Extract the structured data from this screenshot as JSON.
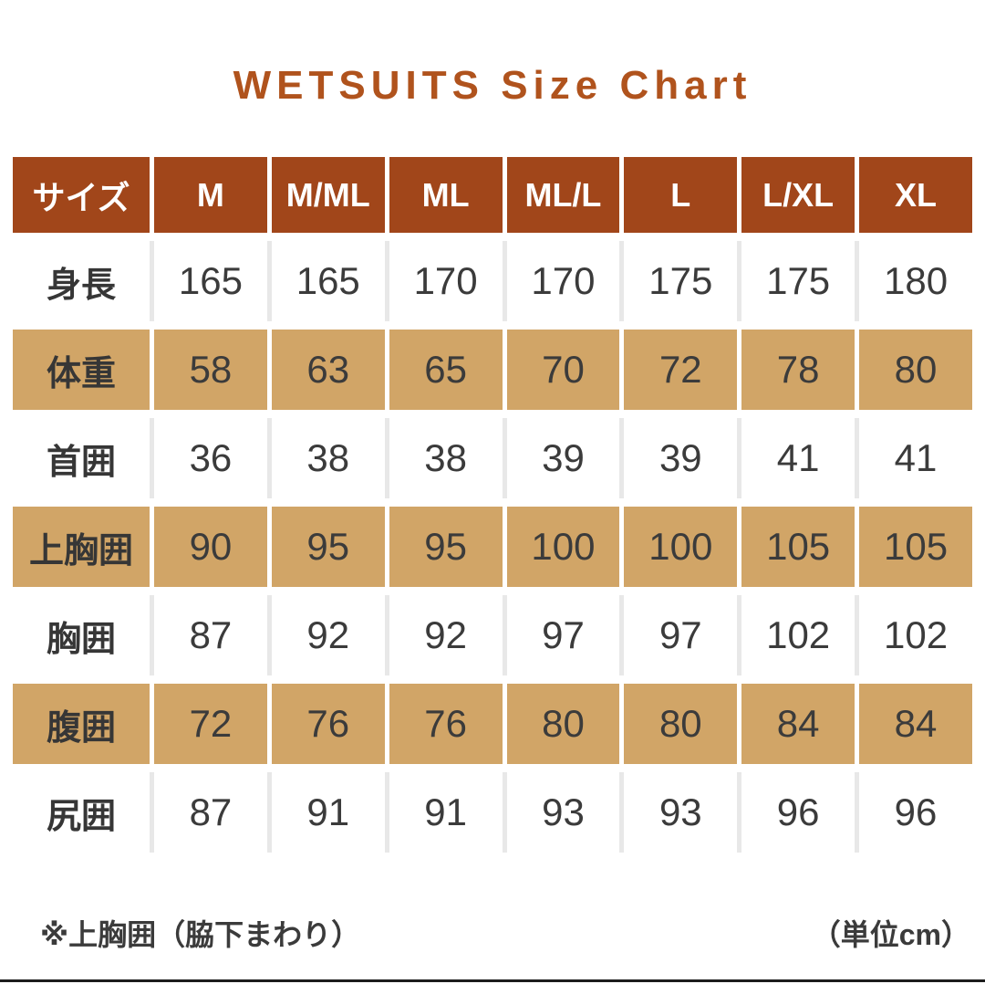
{
  "title": "WETSUITS Size Chart",
  "colors": {
    "title_text": "#b0531d",
    "header_bg": "#a1461a",
    "header_text": "#ffffff",
    "highlight_row_bg": "#d1a567",
    "body_text": "#3b3b3b",
    "column_gap": "#e8e8e8"
  },
  "chart_data": {
    "type": "table",
    "title": "WETSUITS Size Chart",
    "unit": "cm",
    "columns": [
      "サイズ",
      "M",
      "M/ML",
      "ML",
      "ML/L",
      "L",
      "L/XL",
      "XL"
    ],
    "rows": [
      {
        "label": "身長",
        "values": [
          "165",
          "165",
          "170",
          "170",
          "175",
          "175",
          "180"
        ],
        "highlight": false
      },
      {
        "label": "体重",
        "values": [
          "58",
          "63",
          "65",
          "70",
          "72",
          "78",
          "80"
        ],
        "highlight": true
      },
      {
        "label": "首囲",
        "values": [
          "36",
          "38",
          "38",
          "39",
          "39",
          "41",
          "41"
        ],
        "highlight": false
      },
      {
        "label": "上胸囲",
        "values": [
          "90",
          "95",
          "95",
          "100",
          "100",
          "105",
          "105"
        ],
        "highlight": true
      },
      {
        "label": "胸囲",
        "values": [
          "87",
          "92",
          "92",
          "97",
          "97",
          "102",
          "102"
        ],
        "highlight": false
      },
      {
        "label": "腹囲",
        "values": [
          "72",
          "76",
          "76",
          "80",
          "80",
          "84",
          "84"
        ],
        "highlight": true
      },
      {
        "label": "尻囲",
        "values": [
          "87",
          "91",
          "91",
          "93",
          "93",
          "96",
          "96"
        ],
        "highlight": false
      }
    ]
  },
  "footnotes": {
    "left": "※上胸囲（脇下まわり）",
    "right": "（単位cm）"
  }
}
